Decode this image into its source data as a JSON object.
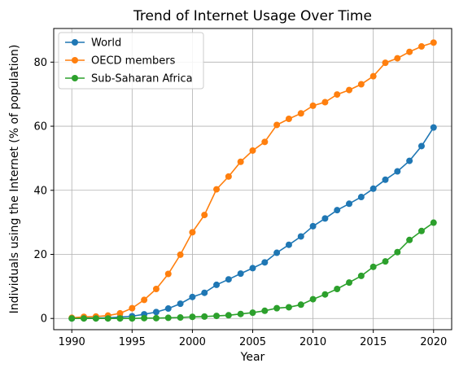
{
  "chart_data": {
    "type": "line",
    "title": "Trend of Internet Usage Over Time",
    "xlabel": "Year",
    "ylabel": "Individuals using the Internet (% of population)",
    "xlim": [
      1988.5,
      2021.5
    ],
    "ylim": [
      -3.5,
      90.5
    ],
    "xticks": [
      1990,
      1995,
      2000,
      2005,
      2010,
      2015,
      2020
    ],
    "yticks": [
      0,
      20,
      40,
      60,
      80
    ],
    "grid": true,
    "legend_position": "top-left",
    "x": [
      1990,
      1991,
      1992,
      1993,
      1994,
      1995,
      1996,
      1997,
      1998,
      1999,
      2000,
      2001,
      2002,
      2003,
      2004,
      2005,
      2006,
      2007,
      2008,
      2009,
      2010,
      2011,
      2012,
      2013,
      2014,
      2015,
      2016,
      2017,
      2018,
      2019,
      2020
    ],
    "series": [
      {
        "name": "World",
        "color": "#1f77b4",
        "values": [
          0.0,
          0.1,
          0.1,
          0.2,
          0.4,
          0.7,
          1.3,
          2.0,
          3.1,
          4.6,
          6.7,
          8.0,
          10.5,
          12.2,
          14.0,
          15.7,
          17.5,
          20.5,
          23.0,
          25.6,
          28.8,
          31.2,
          33.8,
          35.8,
          37.9,
          40.5,
          43.3,
          45.9,
          49.2,
          53.8,
          59.6
        ]
      },
      {
        "name": "OECD members",
        "color": "#ff7f0e",
        "values": [
          0.2,
          0.5,
          0.6,
          0.9,
          1.6,
          3.2,
          5.8,
          9.2,
          13.9,
          19.9,
          26.9,
          32.3,
          40.3,
          44.3,
          48.9,
          52.4,
          55.1,
          60.4,
          62.3,
          64.0,
          66.4,
          67.5,
          69.9,
          71.3,
          73.1,
          75.6,
          79.8,
          81.2,
          83.2,
          84.9,
          86.1
        ]
      },
      {
        "name": "Sub-Saharan Africa",
        "color": "#2ca02c",
        "values": [
          0.0,
          0.0,
          0.0,
          0.0,
          0.0,
          0.0,
          0.1,
          0.1,
          0.2,
          0.3,
          0.5,
          0.6,
          0.8,
          1.0,
          1.4,
          1.8,
          2.4,
          3.2,
          3.5,
          4.3,
          6.0,
          7.5,
          9.2,
          11.2,
          13.3,
          16.1,
          17.8,
          20.7,
          24.5,
          27.3,
          29.9
        ]
      }
    ]
  }
}
